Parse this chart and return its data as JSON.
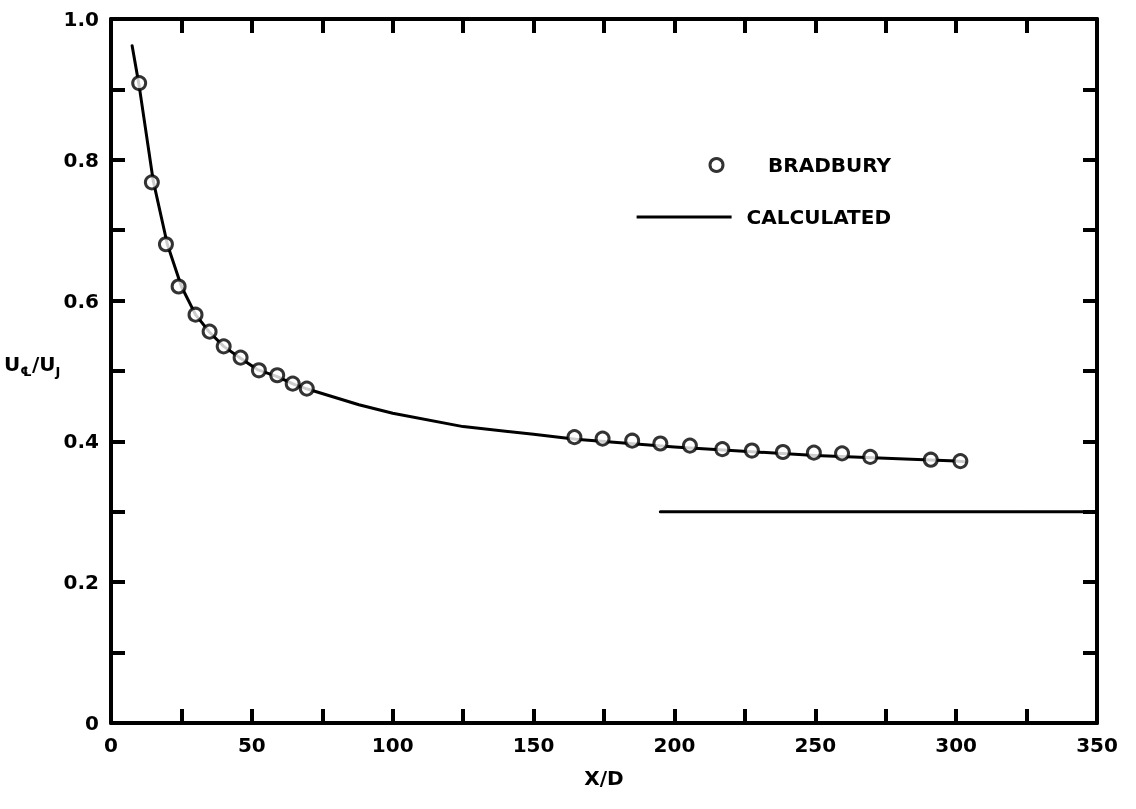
{
  "chart_data": {
    "type": "line",
    "xlabel": "X/D",
    "ylabel": "U$_{℄}$/U$_{J}$",
    "xlim": [
      0,
      350
    ],
    "xticks": [
      0,
      {
        "value": 25,
        "label": null
      },
      50,
      {
        "value": 75,
        "label": null
      },
      100,
      {
        "value": 125,
        "label": null
      },
      150,
      {
        "value": 175,
        "label": null
      },
      200,
      {
        "value": 225,
        "label": null
      },
      250,
      {
        "value": 275,
        "label": null
      },
      300,
      {
        "value": 325,
        "label": null
      },
      350
    ],
    "ylim": [
      0,
      1
    ],
    "yticks": [
      0,
      {
        "value": 0.1,
        "label": null
      },
      0.2,
      {
        "value": 0.3,
        "label": null
      },
      0.4,
      {
        "value": 0.5,
        "label": null
      },
      0.6,
      {
        "value": 0.7,
        "label": null
      },
      0.8,
      {
        "value": 0.9,
        "label": null
      },
      {
        "value": 1,
        "label": "1.0"
      }
    ],
    "grid": false,
    "legend": "top right",
    "series": [
      {
        "name": "BRADBURY",
        "type": "scatter",
        "marker": "circle",
        "color": "#000000",
        "x": [
          10,
          14.5,
          19.5,
          24,
          30,
          35,
          40,
          46,
          52.5,
          59,
          64.5,
          69.5,
          164.5,
          174.5,
          185,
          195,
          205.5,
          217,
          227.5,
          238.5,
          249.5,
          259.5,
          269.5,
          291,
          301.5
        ],
        "values": [
          0.909,
          0.768,
          0.68,
          0.62,
          0.58,
          0.556,
          0.535,
          0.519,
          0.501,
          0.494,
          0.482,
          0.475,
          0.406,
          0.404,
          0.401,
          0.397,
          0.394,
          0.389,
          0.387,
          0.385,
          0.384,
          0.383,
          0.378,
          0.374,
          0.372
        ]
      },
      {
        "name": "CALCULATED",
        "marker": "none",
        "color": "#000000",
        "x": [
          7.5,
          10,
          15,
          20,
          25,
          30,
          35,
          40,
          46,
          52,
          59,
          65,
          70,
          88,
          100,
          125,
          150,
          165,
          200,
          250,
          300,
          303
        ],
        "values": [
          0.962,
          0.905,
          0.77,
          0.68,
          0.62,
          0.58,
          0.555,
          0.535,
          0.518,
          0.502,
          0.492,
          0.481,
          0.474,
          0.452,
          0.44,
          0.421,
          0.41,
          0.403,
          0.392,
          0.38,
          0.372,
          0.371
        ]
      },
      {
        "marker": "none",
        "color": "#000000",
        "x": [
          195,
          350
        ],
        "values": [
          0.3,
          0.3
        ]
      }
    ]
  }
}
